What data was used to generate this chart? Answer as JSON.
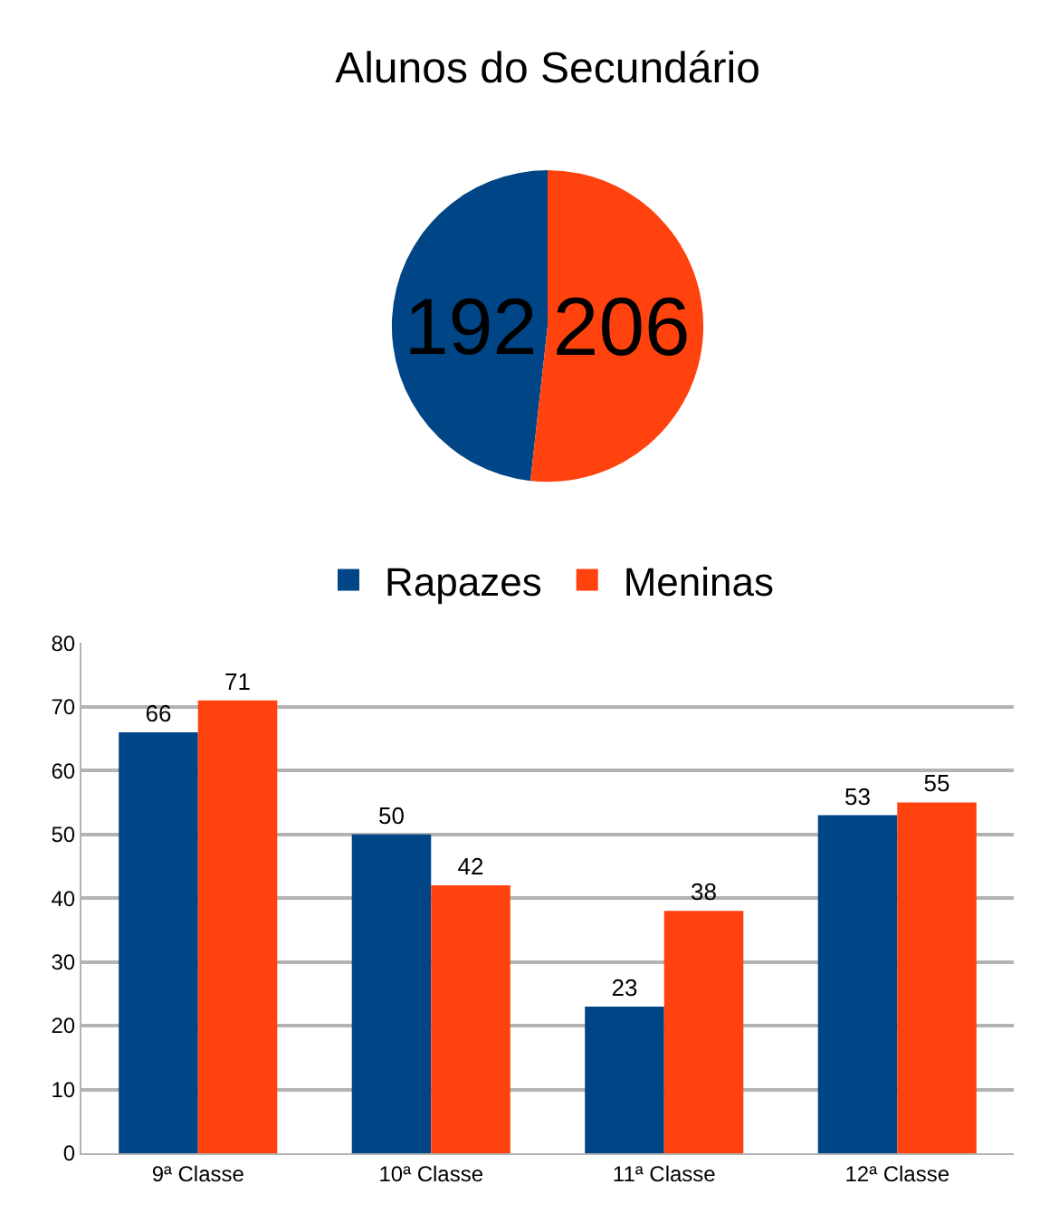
{
  "chart_data": [
    {
      "type": "pie",
      "title": "Alunos do Secundário",
      "categories": [
        null,
        null
      ],
      "values": [
        192,
        206
      ],
      "colors": [
        "#004586",
        "#ff420e"
      ],
      "data_labels": true
    },
    {
      "type": "bar",
      "categories": [
        "9ª Classe",
        "10ª Classe",
        "11ª Classe",
        "12ª Classe"
      ],
      "series": [
        {
          "name": "Rapazes",
          "color": "#004586",
          "values": [
            66,
            50,
            23,
            53
          ]
        },
        {
          "name": "Meninas",
          "color": "#ff420e",
          "values": [
            71,
            42,
            38,
            55
          ]
        }
      ],
      "ylim": [
        0,
        80
      ],
      "yticks": [
        0,
        10,
        20,
        30,
        40,
        50,
        60,
        70,
        80
      ],
      "grid": "y",
      "legend": "top",
      "data_labels": true
    }
  ]
}
